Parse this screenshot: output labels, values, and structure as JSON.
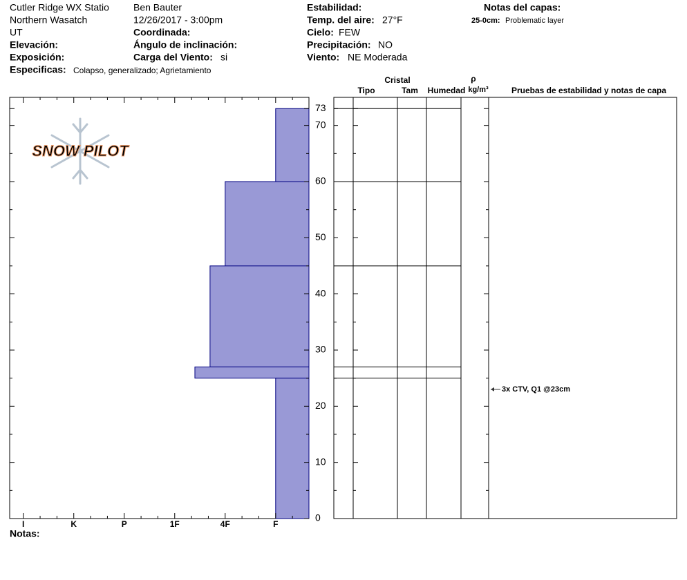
{
  "header": {
    "station": "Cutler Ridge WX Statio",
    "range": "Northern Wasatch",
    "state": "UT",
    "elevation_label": "Elevación:",
    "aspect_label": "Exposición:",
    "specifics_label": "Especificas:",
    "specifics": "Colapso, generalizado; Agrietamiento",
    "observer": "Ben Bauter",
    "datetime": "12/26/2017 - 3:00pm",
    "coords_label": "Coordinada:",
    "slope_label": "Ángulo de inclinación:",
    "wind_load_label": "Carga del Viento:",
    "wind_load": "si",
    "stability_label": "Estabilidad:",
    "air_temp_label": "Temp. del aire:",
    "air_temp": "27°F",
    "sky_label": "Cielo:",
    "sky": "FEW",
    "precip_label": "Precipitación:",
    "precip": "NO",
    "wind_label": "Viento:",
    "wind": "NE Moderada",
    "layer_notes_label": "Notas del capas:",
    "layer_note_range": "25-0cm:",
    "layer_note": "Problematic layer"
  },
  "logo": "SNOW PILOT",
  "table_headers": {
    "crystal": "Cristal",
    "type": "Tipo",
    "size": "Tam",
    "moisture": "Humedad",
    "rho": "ρ",
    "density_unit": "kg/m³",
    "tests": "Pruebas de estabilidad y notas de capa"
  },
  "notes_label": "Notas:",
  "chart_data": {
    "type": "hardness-profile",
    "xlim": [
      0.34,
      6.27
    ],
    "xticks": [
      {
        "value": 6,
        "label": "I"
      },
      {
        "value": 5,
        "label": "K"
      },
      {
        "value": 4,
        "label": "P"
      },
      {
        "value": 3,
        "label": "1F"
      },
      {
        "value": 2,
        "label": "4F"
      },
      {
        "value": 1,
        "label": "F"
      }
    ],
    "ylim": [
      0,
      75
    ],
    "yticks": [
      0,
      10,
      20,
      30,
      40,
      50,
      60,
      70,
      73
    ],
    "color": "#9999d6",
    "layers": [
      {
        "top": 73,
        "bottom": 60,
        "hardness": 1
      },
      {
        "top": 60,
        "bottom": 45,
        "hardness": 2
      },
      {
        "top": 45,
        "bottom": 27,
        "hardness": 2.3
      },
      {
        "top": 27,
        "bottom": 25,
        "hardness": 2.6
      },
      {
        "top": 25,
        "bottom": 0,
        "hardness": 1
      }
    ],
    "tests": [
      {
        "depth": 23,
        "label": "3x CTV, Q1 @23cm"
      }
    ]
  }
}
